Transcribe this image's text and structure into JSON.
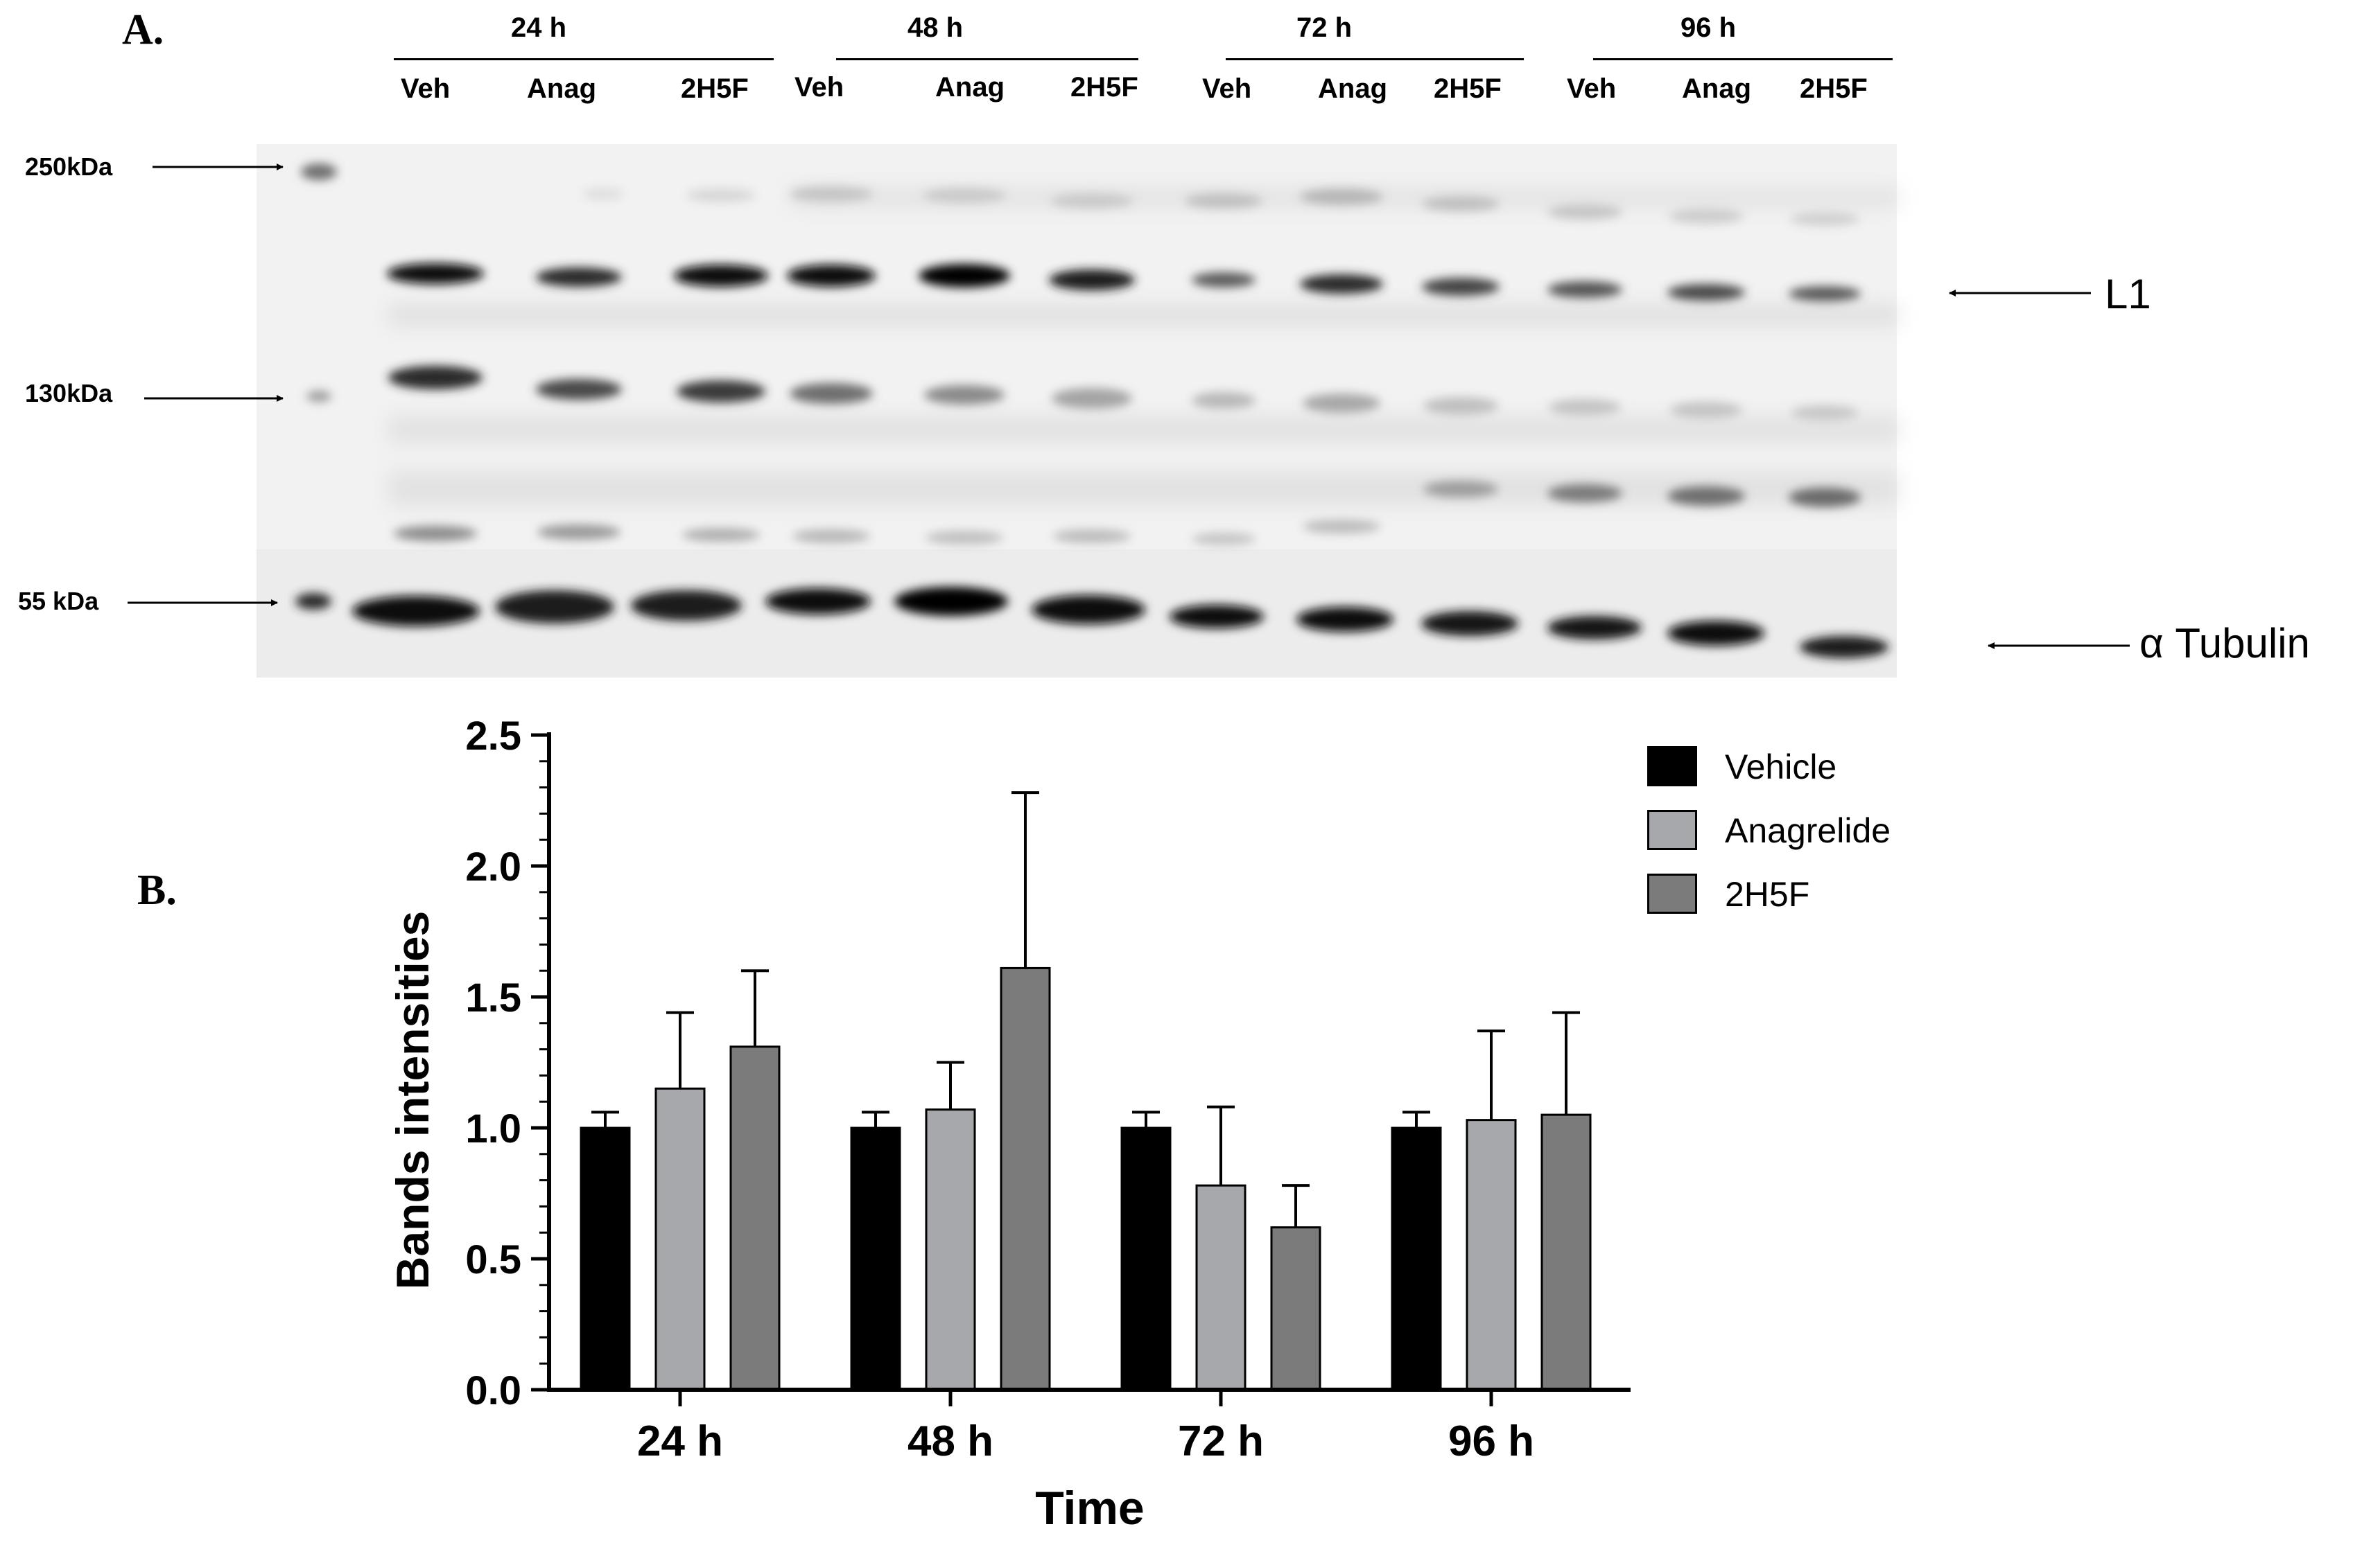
{
  "panel_a": {
    "letter": "A.",
    "time_headers": [
      "24 h",
      "48 h",
      "72 h",
      "96 h"
    ],
    "lane_labels": [
      "Veh",
      "Anag",
      "2H5F",
      "Veh",
      "Anag",
      "2H5F",
      "Veh",
      "Anag",
      "2H5F",
      "Veh",
      "Anag",
      "2H5F"
    ],
    "markers": [
      "250kDa",
      "130kDa",
      "55 kDa"
    ],
    "band_labels": {
      "l1": "L1",
      "tubulin": "α Tubulin"
    }
  },
  "panel_b": {
    "letter": "B."
  },
  "colors": {
    "vehicle": "#000000",
    "anagrelide": "#a6a8ab",
    "h2h5f": "#7b7b7b"
  },
  "chart_data": {
    "type": "bar",
    "categories": [
      "24 h",
      "48 h",
      "72 h",
      "96 h"
    ],
    "series": [
      {
        "name": "Vehicle",
        "values": [
          1.0,
          1.0,
          1.0,
          1.0
        ],
        "errors": [
          0.06,
          0.06,
          0.06,
          0.06
        ]
      },
      {
        "name": "Anagrelide",
        "values": [
          1.15,
          1.07,
          0.78,
          1.03
        ],
        "errors": [
          0.29,
          0.18,
          0.3,
          0.34
        ]
      },
      {
        "name": "2H5F",
        "values": [
          1.31,
          1.61,
          0.62,
          1.05
        ],
        "errors": [
          0.29,
          0.67,
          0.16,
          0.39
        ]
      }
    ],
    "xlabel": "Time",
    "ylabel": "Bands intensities",
    "ylim": [
      0,
      2.5
    ],
    "yticks": [
      "0.0",
      "0.5",
      "1.0",
      "1.5",
      "2.0",
      "2.5"
    ],
    "legend_position": "top-right",
    "grid": false
  }
}
